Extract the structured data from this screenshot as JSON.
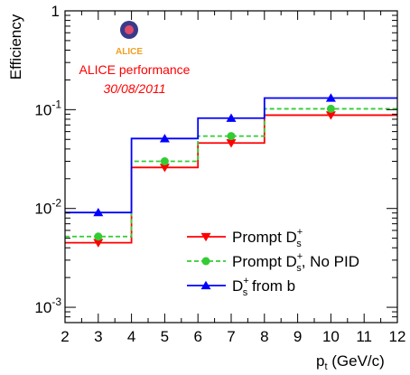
{
  "chart_data": {
    "type": "line",
    "xlabel": "p",
    "xlabel_sub": "t",
    "xlabel_unit": " (GeV/c)",
    "ylabel": "Efficiency",
    "xlim": [
      2,
      12
    ],
    "ylim": [
      0.0007,
      1
    ],
    "yscale": "log",
    "x_ticks": [
      "2",
      "3",
      "4",
      "5",
      "6",
      "7",
      "8",
      "9",
      "10",
      "11",
      "12"
    ],
    "y_ticks": [
      {
        "value": 0.001,
        "base": "10",
        "exp": "-3"
      },
      {
        "value": 0.01,
        "base": "10",
        "exp": "-2"
      },
      {
        "value": 0.1,
        "base": "10",
        "exp": "-1"
      },
      {
        "value": 1,
        "base": "1",
        "exp": ""
      }
    ],
    "bin_edges": [
      2,
      4,
      6,
      8,
      12
    ],
    "series": [
      {
        "name_main": "Prompt D",
        "name_sup": "+",
        "name_sub": "s",
        "name_suffix": "",
        "color": "#ff0000",
        "style": "solid",
        "marker": "triangle-down",
        "x": [
          3,
          5,
          7,
          10
        ],
        "values": [
          0.0045,
          0.026,
          0.046,
          0.088
        ]
      },
      {
        "name_main": "Prompt D",
        "name_sup": "+",
        "name_sub": "s",
        "name_suffix": ", No PID",
        "color": "#33cc33",
        "style": "dashed",
        "marker": "circle",
        "x": [
          3,
          5,
          7,
          10
        ],
        "values": [
          0.0052,
          0.03,
          0.054,
          0.102
        ]
      },
      {
        "name_main": "D",
        "name_sup": "+",
        "name_sub": "s",
        "name_suffix": " from b",
        "color": "#0000ff",
        "style": "solid",
        "marker": "triangle-up",
        "x": [
          3,
          5,
          7,
          10
        ],
        "values": [
          0.0091,
          0.051,
          0.082,
          0.131
        ]
      }
    ],
    "annotations": {
      "performance": "ALICE performance",
      "date": "30/08/2011",
      "logo_text": "ALICE"
    },
    "legend_position": "bottom-right",
    "grid": false
  }
}
